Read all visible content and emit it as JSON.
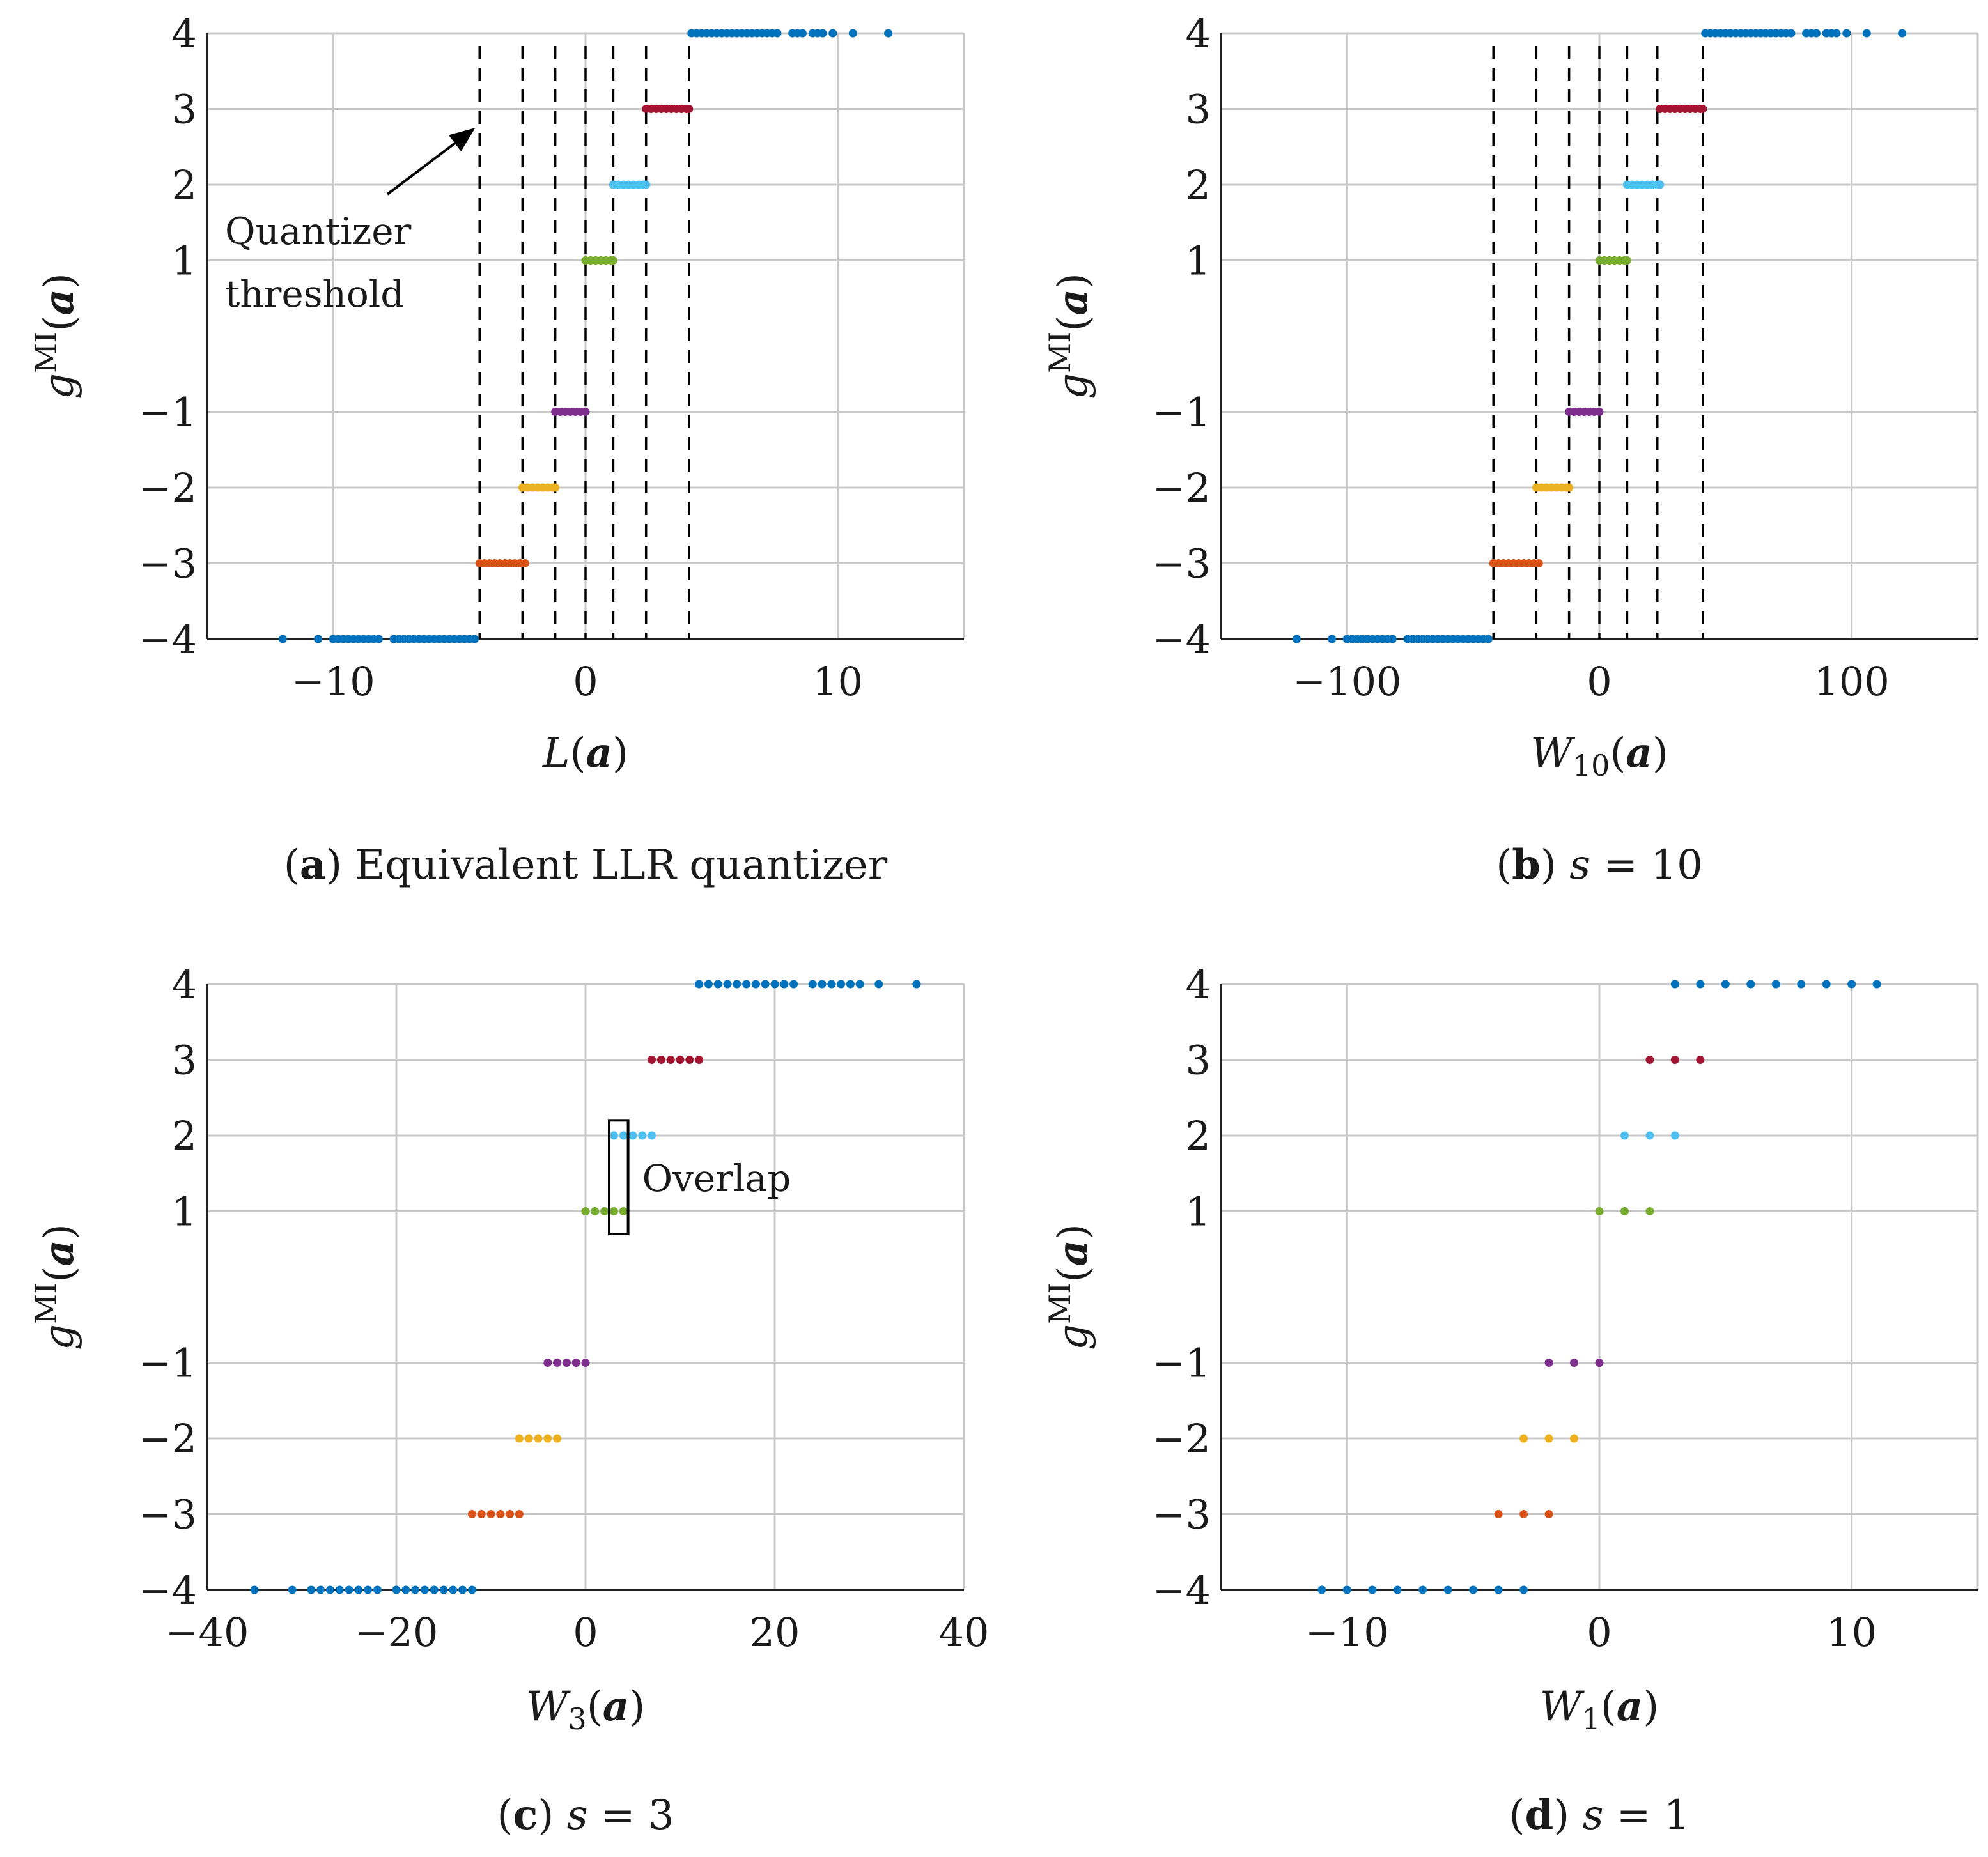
{
  "chart_data": [
    {
      "type": "scatter",
      "panel_letter": "a",
      "caption": "Equivalent LLR quantizer",
      "xlabel_sym": "L",
      "xlabel_sub": "",
      "ylabel_sym": "g",
      "ylabel_sup": "MI",
      "ylabel_arg": "a",
      "xlim": [
        -15,
        15
      ],
      "ylim": [
        -4,
        4
      ],
      "xticks": [
        -10,
        0,
        10
      ],
      "xtick_labels": [
        "−10",
        "0",
        "10"
      ],
      "yticks": [
        -4,
        -3,
        -2,
        -1,
        1,
        2,
        3,
        4
      ],
      "ytick_labels": [
        "−4",
        "−3",
        "−2",
        "−1",
        "1",
        "2",
        "3",
        "4"
      ],
      "grid": true,
      "thresholds": [
        -4.2,
        -2.5,
        -1.2,
        0,
        1.1,
        2.4,
        4.1
      ],
      "annotations": [
        {
          "lines": [
            "Quantizer",
            "threshold"
          ],
          "arrow_to": [
            -4.2,
            3
          ]
        }
      ],
      "series": [
        {
          "y": -4,
          "color": "#0072bd",
          "x": [
            -12.0,
            -10.6,
            -10.0,
            -9.8,
            -9.6,
            -9.4,
            -9.2,
            -9.0,
            -8.8,
            -8.6,
            -8.4,
            -8.2,
            -7.6,
            -7.4,
            -7.2,
            -7.0,
            -6.8,
            -6.6,
            -6.4,
            -6.2,
            -6.0,
            -5.8,
            -5.6,
            -5.4,
            -5.2,
            -5.0,
            -4.8,
            -4.6,
            -4.4
          ]
        },
        {
          "y": -3,
          "color": "#d95319",
          "x": [
            -4.2,
            -4.0,
            -3.8,
            -3.6,
            -3.4,
            -3.2,
            -3.0,
            -2.8,
            -2.6,
            -2.4
          ]
        },
        {
          "y": -2,
          "color": "#edb120",
          "x": [
            -2.5,
            -2.3,
            -2.1,
            -1.9,
            -1.7,
            -1.5,
            -1.3,
            -1.2
          ]
        },
        {
          "y": -1,
          "color": "#7e2f8e",
          "x": [
            -1.2,
            -1.0,
            -0.8,
            -0.6,
            -0.4,
            -0.2,
            0.0
          ]
        },
        {
          "y": 1,
          "color": "#77ac30",
          "x": [
            0.0,
            0.2,
            0.4,
            0.6,
            0.8,
            1.0,
            1.1
          ]
        },
        {
          "y": 2,
          "color": "#4dbeee",
          "x": [
            1.1,
            1.3,
            1.5,
            1.7,
            1.9,
            2.1,
            2.3,
            2.4
          ]
        },
        {
          "y": 3,
          "color": "#a2142f",
          "x": [
            2.4,
            2.6,
            2.8,
            3.0,
            3.2,
            3.4,
            3.6,
            3.8,
            4.0,
            4.1
          ]
        },
        {
          "y": 4,
          "color": "#0072bd",
          "x": [
            4.2,
            4.4,
            4.6,
            4.8,
            5.0,
            5.2,
            5.4,
            5.6,
            5.8,
            6.0,
            6.2,
            6.4,
            6.6,
            6.8,
            7.0,
            7.2,
            7.4,
            7.6,
            8.2,
            8.4,
            8.6,
            9.0,
            9.2,
            9.4,
            9.8,
            10.6,
            12.0
          ]
        }
      ]
    },
    {
      "type": "scatter",
      "panel_letter": "b",
      "caption": "s = 10",
      "xlabel_sym": "W",
      "xlabel_sub": "10",
      "ylabel_sym": "g",
      "ylabel_sup": "MI",
      "ylabel_arg": "a",
      "xlim": [
        -150,
        150
      ],
      "ylim": [
        -4,
        4
      ],
      "xticks": [
        -100,
        0,
        100
      ],
      "xtick_labels": [
        "−100",
        "0",
        "100"
      ],
      "yticks": [
        -4,
        -3,
        -2,
        -1,
        1,
        2,
        3,
        4
      ],
      "ytick_labels": [
        "−4",
        "−3",
        "−2",
        "−1",
        "1",
        "2",
        "3",
        "4"
      ],
      "grid": true,
      "thresholds": [
        -42,
        -25,
        -12,
        0,
        11,
        23,
        41
      ],
      "annotations": [],
      "series": [
        {
          "y": -4,
          "color": "#0072bd",
          "x": [
            -120,
            -106,
            -100,
            -98,
            -96,
            -94,
            -92,
            -90,
            -88,
            -86,
            -84,
            -82,
            -76,
            -74,
            -72,
            -70,
            -68,
            -66,
            -64,
            -62,
            -60,
            -58,
            -56,
            -54,
            -52,
            -50,
            -48,
            -46,
            -44
          ]
        },
        {
          "y": -3,
          "color": "#d95319",
          "x": [
            -42,
            -40,
            -38,
            -36,
            -34,
            -32,
            -30,
            -28,
            -26,
            -24
          ]
        },
        {
          "y": -2,
          "color": "#edb120",
          "x": [
            -25,
            -23,
            -21,
            -19,
            -17,
            -15,
            -13,
            -12
          ]
        },
        {
          "y": -1,
          "color": "#7e2f8e",
          "x": [
            -12,
            -10,
            -8,
            -6,
            -4,
            -2,
            0
          ]
        },
        {
          "y": 1,
          "color": "#77ac30",
          "x": [
            0,
            2,
            4,
            6,
            8,
            10,
            11
          ]
        },
        {
          "y": 2,
          "color": "#4dbeee",
          "x": [
            11,
            13,
            15,
            17,
            19,
            21,
            23,
            24
          ]
        },
        {
          "y": 3,
          "color": "#a2142f",
          "x": [
            24,
            26,
            28,
            30,
            32,
            34,
            36,
            38,
            40,
            41
          ]
        },
        {
          "y": 4,
          "color": "#0072bd",
          "x": [
            42,
            44,
            46,
            48,
            50,
            52,
            54,
            56,
            58,
            60,
            62,
            64,
            66,
            68,
            70,
            72,
            74,
            76,
            82,
            84,
            86,
            90,
            92,
            94,
            98,
            106,
            120
          ]
        }
      ]
    },
    {
      "type": "scatter",
      "panel_letter": "c",
      "caption": "s = 3",
      "xlabel_sym": "W",
      "xlabel_sub": "3",
      "ylabel_sym": "g",
      "ylabel_sup": "MI",
      "ylabel_arg": "a",
      "xlim": [
        -40,
        40
      ],
      "ylim": [
        -4,
        4
      ],
      "xticks": [
        -40,
        -20,
        0,
        20,
        40
      ],
      "xtick_labels": [
        "−40",
        "−20",
        "0",
        "20",
        "40"
      ],
      "yticks": [
        -4,
        -3,
        -2,
        -1,
        1,
        2,
        3,
        4
      ],
      "ytick_labels": [
        "−4",
        "−3",
        "−2",
        "−1",
        "1",
        "2",
        "3",
        "4"
      ],
      "grid": true,
      "thresholds": [],
      "annotations": [
        {
          "label": "Overlap",
          "box_x": [
            2.5,
            4.5
          ],
          "box_y": [
            0.7,
            2.2
          ]
        }
      ],
      "series": [
        {
          "y": -4,
          "color": "#0072bd",
          "x": [
            -35,
            -31,
            -29,
            -28,
            -27,
            -26,
            -25,
            -24,
            -23,
            -22,
            -20,
            -19,
            -18,
            -17,
            -16,
            -15,
            -14,
            -13,
            -12
          ]
        },
        {
          "y": -3,
          "color": "#d95319",
          "x": [
            -12,
            -11,
            -10,
            -9,
            -8,
            -7
          ]
        },
        {
          "y": -2,
          "color": "#edb120",
          "x": [
            -7,
            -6,
            -5,
            -4,
            -3
          ]
        },
        {
          "y": -1,
          "color": "#7e2f8e",
          "x": [
            -4,
            -3,
            -2,
            -1,
            0
          ]
        },
        {
          "y": 1,
          "color": "#77ac30",
          "x": [
            0,
            1,
            2,
            3,
            4
          ]
        },
        {
          "y": 2,
          "color": "#4dbeee",
          "x": [
            3,
            4,
            5,
            6,
            7
          ]
        },
        {
          "y": 3,
          "color": "#a2142f",
          "x": [
            7,
            8,
            9,
            10,
            11,
            12
          ]
        },
        {
          "y": 4,
          "color": "#0072bd",
          "x": [
            12,
            13,
            14,
            15,
            16,
            17,
            18,
            19,
            20,
            21,
            22,
            24,
            25,
            26,
            27,
            28,
            29,
            31,
            35
          ]
        }
      ]
    },
    {
      "type": "scatter",
      "panel_letter": "d",
      "caption": "s = 1",
      "xlabel_sym": "W",
      "xlabel_sub": "1",
      "ylabel_sym": "g",
      "ylabel_sup": "MI",
      "ylabel_arg": "a",
      "xlim": [
        -15,
        15
      ],
      "ylim": [
        -4,
        4
      ],
      "xticks": [
        -10,
        0,
        10
      ],
      "xtick_labels": [
        "−10",
        "0",
        "10"
      ],
      "yticks": [
        -4,
        -3,
        -2,
        -1,
        1,
        2,
        3,
        4
      ],
      "ytick_labels": [
        "−4",
        "−3",
        "−2",
        "−1",
        "1",
        "2",
        "3",
        "4"
      ],
      "grid": true,
      "thresholds": [],
      "annotations": [],
      "series": [
        {
          "y": -4,
          "color": "#0072bd",
          "x": [
            -11,
            -10,
            -9,
            -8,
            -7,
            -6,
            -5,
            -4,
            -3
          ]
        },
        {
          "y": -3,
          "color": "#d95319",
          "x": [
            -4,
            -3,
            -2
          ]
        },
        {
          "y": -2,
          "color": "#edb120",
          "x": [
            -3,
            -2,
            -1
          ]
        },
        {
          "y": -1,
          "color": "#7e2f8e",
          "x": [
            -2,
            -1,
            0
          ]
        },
        {
          "y": 1,
          "color": "#77ac30",
          "x": [
            0,
            1,
            2
          ]
        },
        {
          "y": 2,
          "color": "#4dbeee",
          "x": [
            1,
            2,
            3
          ]
        },
        {
          "y": 3,
          "color": "#a2142f",
          "x": [
            2,
            3,
            4
          ]
        },
        {
          "y": 4,
          "color": "#0072bd",
          "x": [
            3,
            4,
            5,
            6,
            7,
            8,
            9,
            10,
            11
          ]
        }
      ]
    }
  ]
}
